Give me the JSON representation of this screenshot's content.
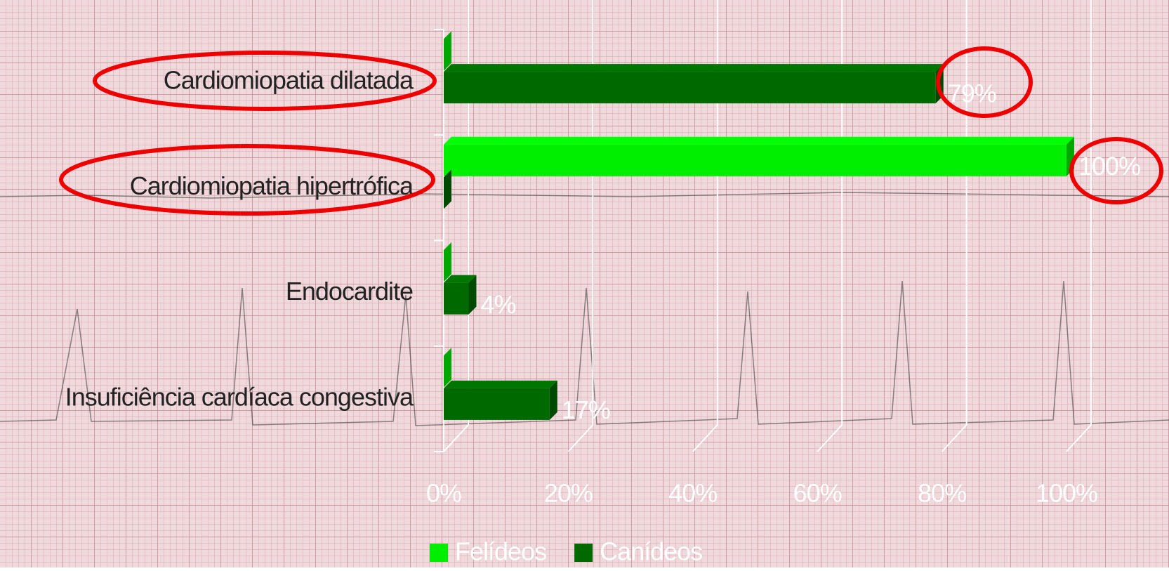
{
  "chart_data": {
    "type": "bar3d_horizontal",
    "categories": [
      "Cardiomiopatia dilatada",
      "Cardiomiopatia hipertrófica",
      "Endocardite",
      "Insuficiência cardíaca congestiva"
    ],
    "series": [
      {
        "name": "Felídeos",
        "color": "#00ee00",
        "values": [
          0,
          100,
          0,
          0
        ],
        "value_labels": [
          null,
          "100%",
          null,
          null
        ]
      },
      {
        "name": "Canídeos",
        "color": "#006a00",
        "values": [
          79,
          0,
          4,
          17
        ],
        "value_labels": [
          "79%",
          null,
          "4%",
          "17%"
        ]
      }
    ],
    "xlim": [
      0,
      100
    ],
    "xticks": [
      {
        "value": 0,
        "label": "0%"
      },
      {
        "value": 20,
        "label": "20%"
      },
      {
        "value": 40,
        "label": "40%"
      },
      {
        "value": 60,
        "label": "60%"
      },
      {
        "value": 80,
        "label": "80%"
      },
      {
        "value": 100,
        "label": "100%"
      }
    ],
    "grid": true,
    "legend": "bottom"
  }
}
